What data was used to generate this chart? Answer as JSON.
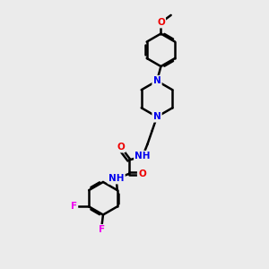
{
  "background_color": "#ebebeb",
  "atom_colors": {
    "C": "#000000",
    "N": "#0000ee",
    "O": "#ee0000",
    "F": "#ee00ee",
    "H": "#000000"
  },
  "bond_color": "#000000",
  "bond_width": 1.8,
  "figsize": [
    3.0,
    3.0
  ],
  "dpi": 100,
  "scale": 10
}
